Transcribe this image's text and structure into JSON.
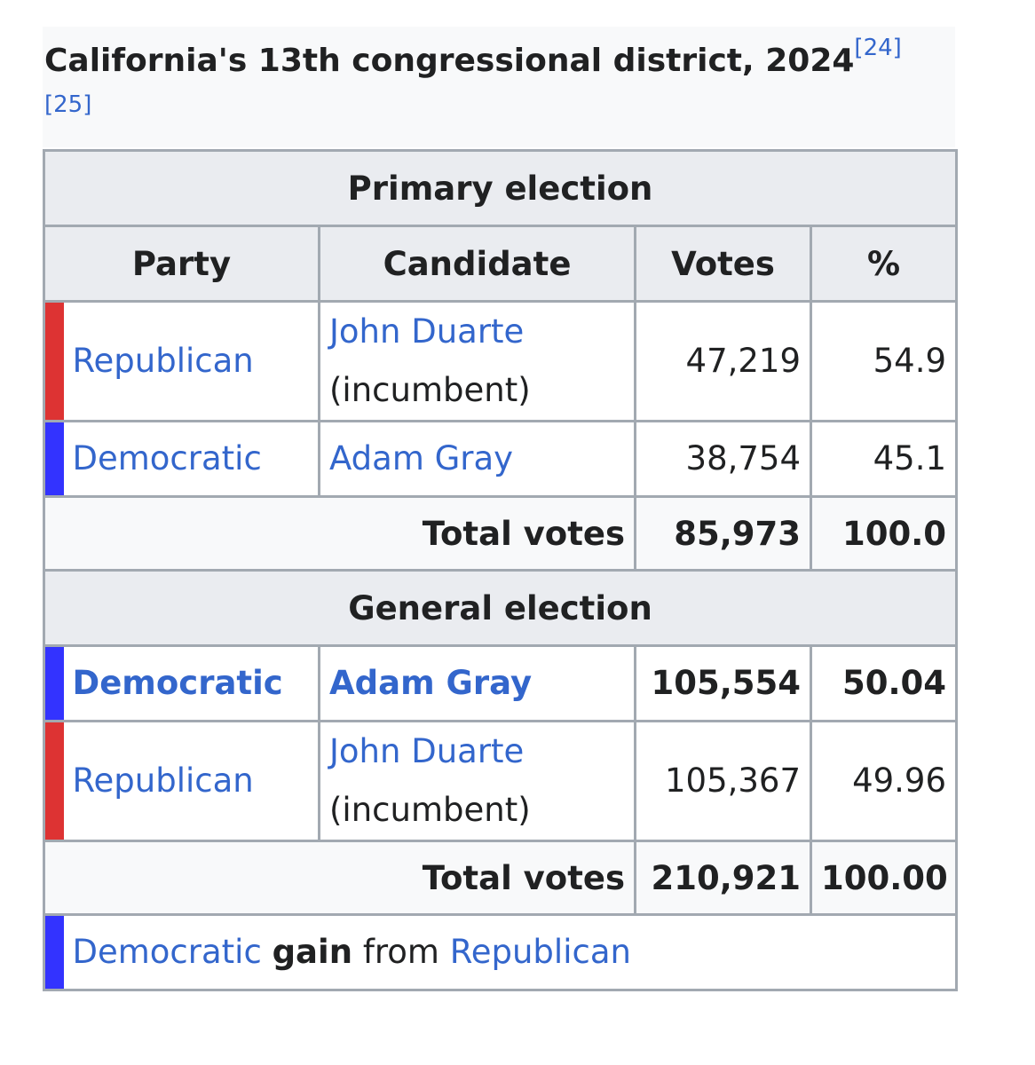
{
  "caption": {
    "title": "California's 13th congressional district, 2024",
    "refs": [
      "[24]",
      "[25]"
    ]
  },
  "sections": [
    {
      "heading": "Primary election",
      "columns": [
        "Party",
        "Candidate",
        "Votes",
        "%"
      ],
      "rows": [
        {
          "party": "Republican",
          "candidate": "John Duarte",
          "note": "(incumbent)",
          "votes": "47,219",
          "percent": "54.9",
          "color": "#dd3333",
          "bold": false
        },
        {
          "party": "Democratic",
          "candidate": "Adam Gray",
          "votes": "38,754",
          "percent": "45.1",
          "color": "#3333ff",
          "bold": false
        }
      ],
      "total": {
        "label": "Total votes",
        "votes": "85,973",
        "percent": "100.0"
      }
    },
    {
      "heading": "General election",
      "rows": [
        {
          "party": "Democratic",
          "candidate": "Adam Gray",
          "votes": "105,554",
          "percent": "50.04",
          "color": "#3333ff",
          "bold": true
        },
        {
          "party": "Republican",
          "candidate": "John Duarte",
          "note": "(incumbent)",
          "votes": "105,367",
          "percent": "49.96",
          "color": "#dd3333",
          "bold": false
        }
      ],
      "total": {
        "label": "Total votes",
        "votes": "210,921",
        "percent": "100.00"
      }
    }
  ],
  "result": {
    "party": "Democratic",
    "word": "gain",
    "from": "from",
    "prior": "Republican",
    "color": "#3333ff"
  }
}
